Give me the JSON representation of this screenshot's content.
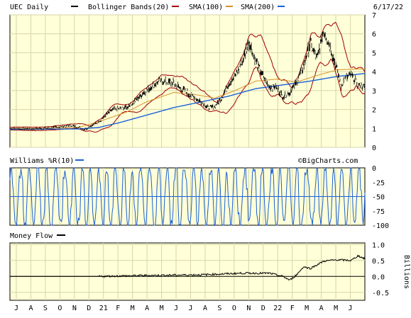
{
  "chart_data": [
    {
      "type": "line",
      "panel": "price",
      "ticker_label": "UEC Daily",
      "date_label": "6/17/22",
      "legend": [
        {
          "name": "Bollinger Bands(20)",
          "color": "#a00000"
        },
        {
          "name": "SMA(100)",
          "color": "#d8902a"
        },
        {
          "name": "SMA(200)",
          "color": "#1a60d8"
        }
      ],
      "yticks": [
        0,
        1,
        2,
        3,
        4,
        5,
        6,
        7
      ],
      "ylim": [
        0,
        7
      ],
      "grid": true,
      "x_months": [
        "J",
        "A",
        "S",
        "O",
        "N",
        "D",
        "21",
        "F",
        "M",
        "A",
        "M",
        "J",
        "J",
        "A",
        "S",
        "O",
        "N",
        "D",
        "22",
        "F",
        "M",
        "A",
        "M",
        "J"
      ],
      "price_knots": [
        [
          0,
          1.0
        ],
        [
          3,
          0.97
        ],
        [
          6,
          1.03
        ],
        [
          9,
          1.15
        ],
        [
          11,
          0.95
        ],
        [
          13,
          1.35
        ],
        [
          15,
          2.0
        ],
        [
          17,
          2.1
        ],
        [
          18,
          2.35
        ],
        [
          19,
          2.7
        ],
        [
          20,
          3.0
        ],
        [
          22,
          3.5
        ],
        [
          24,
          3.4
        ],
        [
          25,
          3.1
        ],
        [
          26,
          2.9
        ],
        [
          28,
          2.4
        ],
        [
          29,
          2.1
        ],
        [
          30,
          2.15
        ],
        [
          31,
          2.6
        ],
        [
          32,
          3.3
        ],
        [
          33,
          3.8
        ],
        [
          34,
          4.5
        ],
        [
          35,
          5.6
        ],
        [
          36,
          4.6
        ],
        [
          37,
          3.8
        ],
        [
          38,
          3.2
        ],
        [
          39,
          3.2
        ],
        [
          40,
          2.65
        ],
        [
          41,
          2.9
        ],
        [
          42,
          3.4
        ],
        [
          43,
          4.3
        ],
        [
          44,
          5.5
        ],
        [
          45,
          4.7
        ],
        [
          46,
          6.2
        ],
        [
          47,
          5.2
        ],
        [
          48,
          4.0
        ],
        [
          48.5,
          3.2
        ],
        [
          49,
          3.6
        ],
        [
          49.7,
          3.8
        ],
        [
          50.3,
          3.7
        ],
        [
          51,
          3.3
        ],
        [
          52,
          3.2
        ]
      ],
      "sma100_knots": [
        [
          0,
          1.0
        ],
        [
          5,
          1.0
        ],
        [
          10,
          1.05
        ],
        [
          13,
          1.35
        ],
        [
          17,
          1.85
        ],
        [
          20,
          2.4
        ],
        [
          24,
          2.9
        ],
        [
          27,
          2.8
        ],
        [
          30,
          2.6
        ],
        [
          33,
          3.0
        ],
        [
          36,
          3.5
        ],
        [
          39,
          3.6
        ],
        [
          42,
          3.45
        ],
        [
          45,
          3.8
        ],
        [
          48,
          4.1
        ],
        [
          52,
          4.15
        ]
      ],
      "sma200_knots": [
        [
          0,
          0.95
        ],
        [
          10,
          0.97
        ],
        [
          13,
          1.05
        ],
        [
          16,
          1.3
        ],
        [
          20,
          1.7
        ],
        [
          24,
          2.1
        ],
        [
          28,
          2.4
        ],
        [
          32,
          2.7
        ],
        [
          36,
          3.1
        ],
        [
          40,
          3.3
        ],
        [
          44,
          3.5
        ],
        [
          48,
          3.75
        ],
        [
          52,
          3.9
        ]
      ]
    },
    {
      "type": "line",
      "panel": "williams",
      "title": "Williams %R(10)",
      "color": "#1a60d8",
      "yticks": [
        0,
        -25,
        -50,
        -75,
        -100
      ],
      "ylim": [
        -100,
        0
      ],
      "reference_line": -50
    },
    {
      "type": "line",
      "panel": "money-flow",
      "title": "Money Flow",
      "ylabel": "Billions",
      "yticks": [
        1.0,
        0.5,
        0.0,
        -0.5
      ],
      "ylim": [
        -0.75,
        1.05
      ],
      "flow_knots": [
        [
          0,
          0
        ],
        [
          13,
          0
        ],
        [
          20,
          0.03
        ],
        [
          28,
          0.05
        ],
        [
          34,
          0.1
        ],
        [
          38,
          0.1
        ],
        [
          40,
          0
        ],
        [
          41,
          -0.12
        ],
        [
          42,
          0.05
        ],
        [
          43,
          0.3
        ],
        [
          44,
          0.25
        ],
        [
          46,
          0.48
        ],
        [
          48,
          0.52
        ],
        [
          50,
          0.5
        ],
        [
          51,
          0.65
        ],
        [
          52,
          0.55
        ]
      ]
    }
  ],
  "branding": {
    "watermark": "©BigCharts.com"
  }
}
